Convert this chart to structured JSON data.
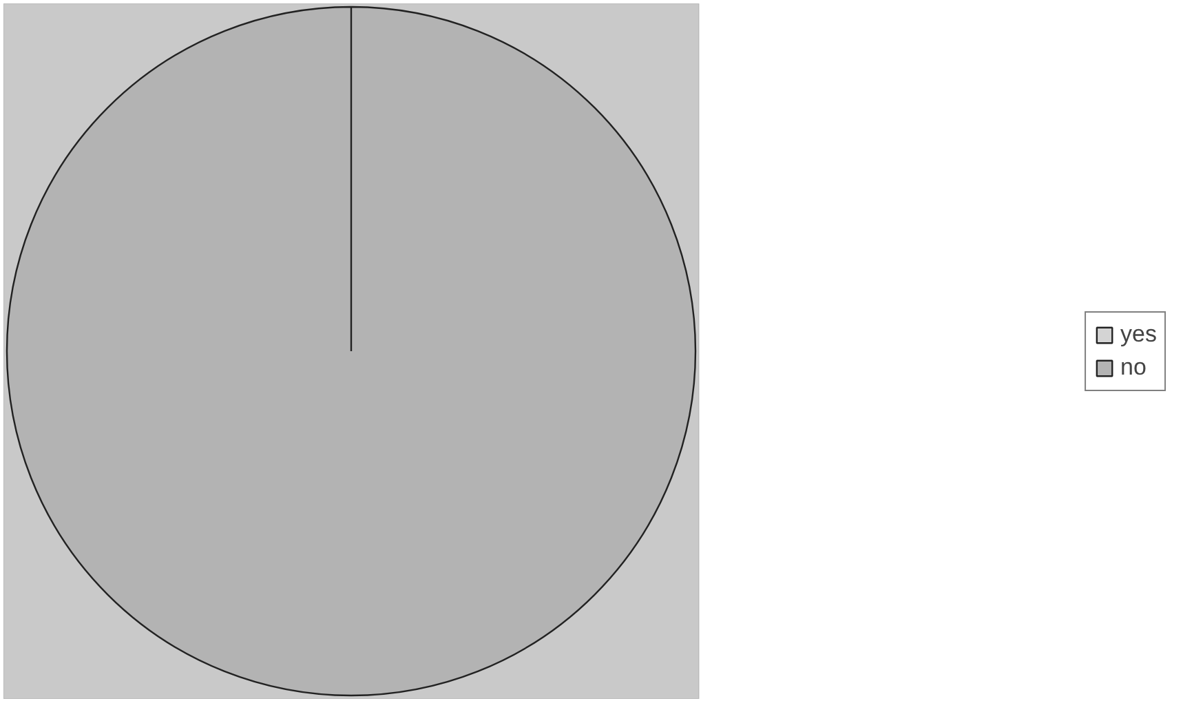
{
  "chart_data": {
    "type": "pie",
    "categories": [
      "yes",
      "no"
    ],
    "values": [
      0,
      100
    ],
    "colors": [
      "#d4d4d4",
      "#b3b3b3"
    ],
    "legend": "right"
  }
}
